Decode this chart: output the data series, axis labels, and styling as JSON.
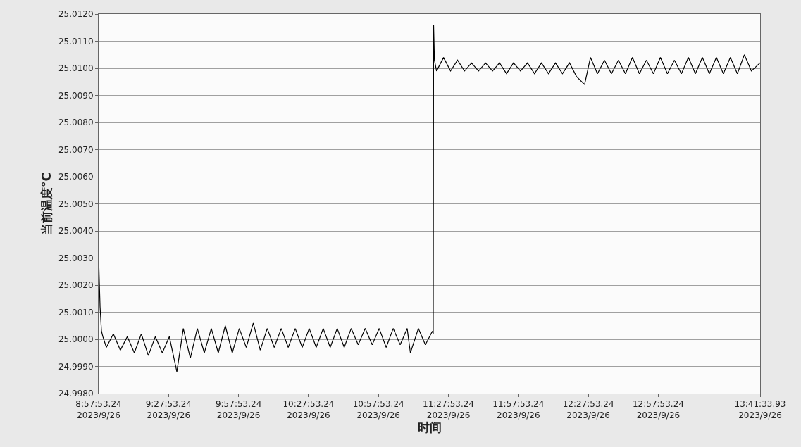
{
  "chart_data": {
    "type": "line",
    "xlabel": "时间",
    "ylabel": "当前温度°C",
    "xlim": [
      "2023-09-26T08:57:53.24",
      "2023-09-26T13:41:33.93"
    ],
    "xticks": [
      {
        "value": "2023-09-26T08:57:53.24",
        "label": "8:57:53.24\n2023/9/26"
      },
      {
        "value": "2023-09-26T09:27:53.24",
        "label": "9:27:53.24\n2023/9/26"
      },
      {
        "value": "2023-09-26T09:57:53.24",
        "label": "9:57:53.24\n2023/9/26"
      },
      {
        "value": "2023-09-26T10:27:53.24",
        "label": "10:27:53.24\n2023/9/26"
      },
      {
        "value": "2023-09-26T10:57:53.24",
        "label": "10:57:53.24\n2023/9/26"
      },
      {
        "value": "2023-09-26T11:27:53.24",
        "label": "11:27:53.24\n2023/9/26"
      },
      {
        "value": "2023-09-26T11:57:53.24",
        "label": "11:57:53.24\n2023/9/26"
      },
      {
        "value": "2023-09-26T12:27:53.24",
        "label": "12:27:53.24\n2023/9/26"
      },
      {
        "value": "2023-09-26T12:57:53.24",
        "label": "12:57:53.24\n2023/9/26"
      },
      {
        "value": "2023-09-26T13:41:33.93",
        "label": "13:41:33.93\n2023/9/26"
      }
    ],
    "ylim": [
      24.998,
      25.012
    ],
    "yticks": [
      {
        "value": 24.998,
        "label": "24.9980"
      },
      {
        "value": 24.999,
        "label": "24.9990"
      },
      {
        "value": 25.0,
        "label": "25.0000"
      },
      {
        "value": 25.001,
        "label": "25.0010"
      },
      {
        "value": 25.002,
        "label": "25.0020"
      },
      {
        "value": 25.003,
        "label": "25.0030"
      },
      {
        "value": 25.004,
        "label": "25.0040"
      },
      {
        "value": 25.005,
        "label": "25.0050"
      },
      {
        "value": 25.006,
        "label": "25.0060"
      },
      {
        "value": 25.007,
        "label": "25.0070"
      },
      {
        "value": 25.008,
        "label": "25.0080"
      },
      {
        "value": 25.009,
        "label": "25.0090"
      },
      {
        "value": 25.01,
        "label": "25.0100"
      },
      {
        "value": 25.011,
        "label": "25.0110"
      },
      {
        "value": 25.012,
        "label": "25.0120"
      }
    ],
    "grid": "y",
    "marker": "none",
    "line_style": "solid",
    "series": [
      {
        "color": "#000000",
        "x": [
          "2023-09-26T08:57:53.24",
          "2023-09-26T08:58:30",
          "2023-09-26T08:59:06",
          "2023-09-26T08:59:42",
          "2023-09-26T09:01:12",
          "2023-09-26T09:04:12",
          "2023-09-26T09:07:12",
          "2023-09-26T09:10:12",
          "2023-09-26T09:13:12",
          "2023-09-26T09:16:12",
          "2023-09-26T09:19:12",
          "2023-09-26T09:22:12",
          "2023-09-26T09:25:12",
          "2023-09-26T09:28:12",
          "2023-09-26T09:31:26",
          "2023-09-26T09:34:12",
          "2023-09-26T09:37:12",
          "2023-09-26T09:40:12",
          "2023-09-26T09:43:12",
          "2023-09-26T09:46:12",
          "2023-09-26T09:49:12",
          "2023-09-26T09:52:12",
          "2023-09-26T09:55:12",
          "2023-09-26T09:58:12",
          "2023-09-26T10:01:12",
          "2023-09-26T10:04:12",
          "2023-09-26T10:07:12",
          "2023-09-26T10:10:12",
          "2023-09-26T10:13:12",
          "2023-09-26T10:16:12",
          "2023-09-26T10:19:12",
          "2023-09-26T10:22:12",
          "2023-09-26T10:25:12",
          "2023-09-26T10:28:12",
          "2023-09-26T10:31:12",
          "2023-09-26T10:34:12",
          "2023-09-26T10:37:12",
          "2023-09-26T10:40:12",
          "2023-09-26T10:43:12",
          "2023-09-26T10:46:12",
          "2023-09-26T10:49:12",
          "2023-09-26T10:52:12",
          "2023-09-26T10:55:12",
          "2023-09-26T10:58:12",
          "2023-09-26T11:01:12",
          "2023-09-26T11:04:12",
          "2023-09-26T11:07:12",
          "2023-09-26T11:10:12",
          "2023-09-26T11:11:35",
          "2023-09-26T11:15:00",
          "2023-09-26T11:18:00",
          "2023-09-26T11:21:00",
          "2023-09-26T11:21:22",
          "2023-09-26T11:21:32",
          "2023-09-26T11:21:54",
          "2023-09-26T11:22:48",
          "2023-09-26T11:25:48",
          "2023-09-26T11:28:48",
          "2023-09-26T11:31:48",
          "2023-09-26T11:34:48",
          "2023-09-26T11:37:48",
          "2023-09-26T11:40:48",
          "2023-09-26T11:43:48",
          "2023-09-26T11:46:48",
          "2023-09-26T11:49:48",
          "2023-09-26T11:52:48",
          "2023-09-26T11:55:48",
          "2023-09-26T11:58:48",
          "2023-09-26T12:01:48",
          "2023-09-26T12:04:48",
          "2023-09-26T12:07:48",
          "2023-09-26T12:10:48",
          "2023-09-26T12:13:48",
          "2023-09-26T12:16:48",
          "2023-09-26T12:19:48",
          "2023-09-26T12:22:48",
          "2023-09-26T12:26:17",
          "2023-09-26T12:28:48",
          "2023-09-26T12:31:48",
          "2023-09-26T12:34:48",
          "2023-09-26T12:37:48",
          "2023-09-26T12:40:48",
          "2023-09-26T12:43:48",
          "2023-09-26T12:46:48",
          "2023-09-26T12:49:48",
          "2023-09-26T12:52:48",
          "2023-09-26T12:55:48",
          "2023-09-26T12:58:48",
          "2023-09-26T13:01:48",
          "2023-09-26T13:04:48",
          "2023-09-26T13:07:48",
          "2023-09-26T13:10:48",
          "2023-09-26T13:13:48",
          "2023-09-26T13:16:48",
          "2023-09-26T13:19:48",
          "2023-09-26T13:22:48",
          "2023-09-26T13:25:48",
          "2023-09-26T13:28:48",
          "2023-09-26T13:31:48",
          "2023-09-26T13:34:48",
          "2023-09-26T13:37:48",
          "2023-09-26T13:41:33.93"
        ],
        "values": [
          25.003,
          25.0012,
          25.0003,
          25.0001,
          24.9997,
          25.0002,
          24.9996,
          25.0001,
          24.9995,
          25.0002,
          24.9994,
          25.0001,
          24.9995,
          25.0001,
          24.9988,
          25.0004,
          24.9993,
          25.0004,
          24.9995,
          25.0004,
          24.9995,
          25.0005,
          24.9995,
          25.0004,
          24.9997,
          25.0006,
          24.9996,
          25.0004,
          24.9997,
          25.0004,
          24.9997,
          25.0004,
          24.9997,
          25.0004,
          24.9997,
          25.0004,
          24.9997,
          25.0004,
          24.9997,
          25.0004,
          24.9998,
          25.0004,
          24.9998,
          25.0004,
          24.9997,
          25.0004,
          24.9998,
          25.0004,
          24.9995,
          25.0004,
          24.9998,
          25.0003,
          25.0002,
          25.0116,
          25.0103,
          25.0099,
          25.0104,
          25.0099,
          25.0103,
          25.0099,
          25.0102,
          25.0099,
          25.0102,
          25.0099,
          25.0102,
          25.0098,
          25.0102,
          25.0099,
          25.0102,
          25.0098,
          25.0102,
          25.0098,
          25.0102,
          25.0098,
          25.0102,
          25.0097,
          25.0094,
          25.0104,
          25.0098,
          25.0103,
          25.0098,
          25.0103,
          25.0098,
          25.0104,
          25.0098,
          25.0103,
          25.0098,
          25.0104,
          25.0098,
          25.0103,
          25.0098,
          25.0104,
          25.0098,
          25.0104,
          25.0098,
          25.0104,
          25.0098,
          25.0104,
          25.0098,
          25.0105,
          25.0099,
          25.0102
        ]
      }
    ]
  }
}
